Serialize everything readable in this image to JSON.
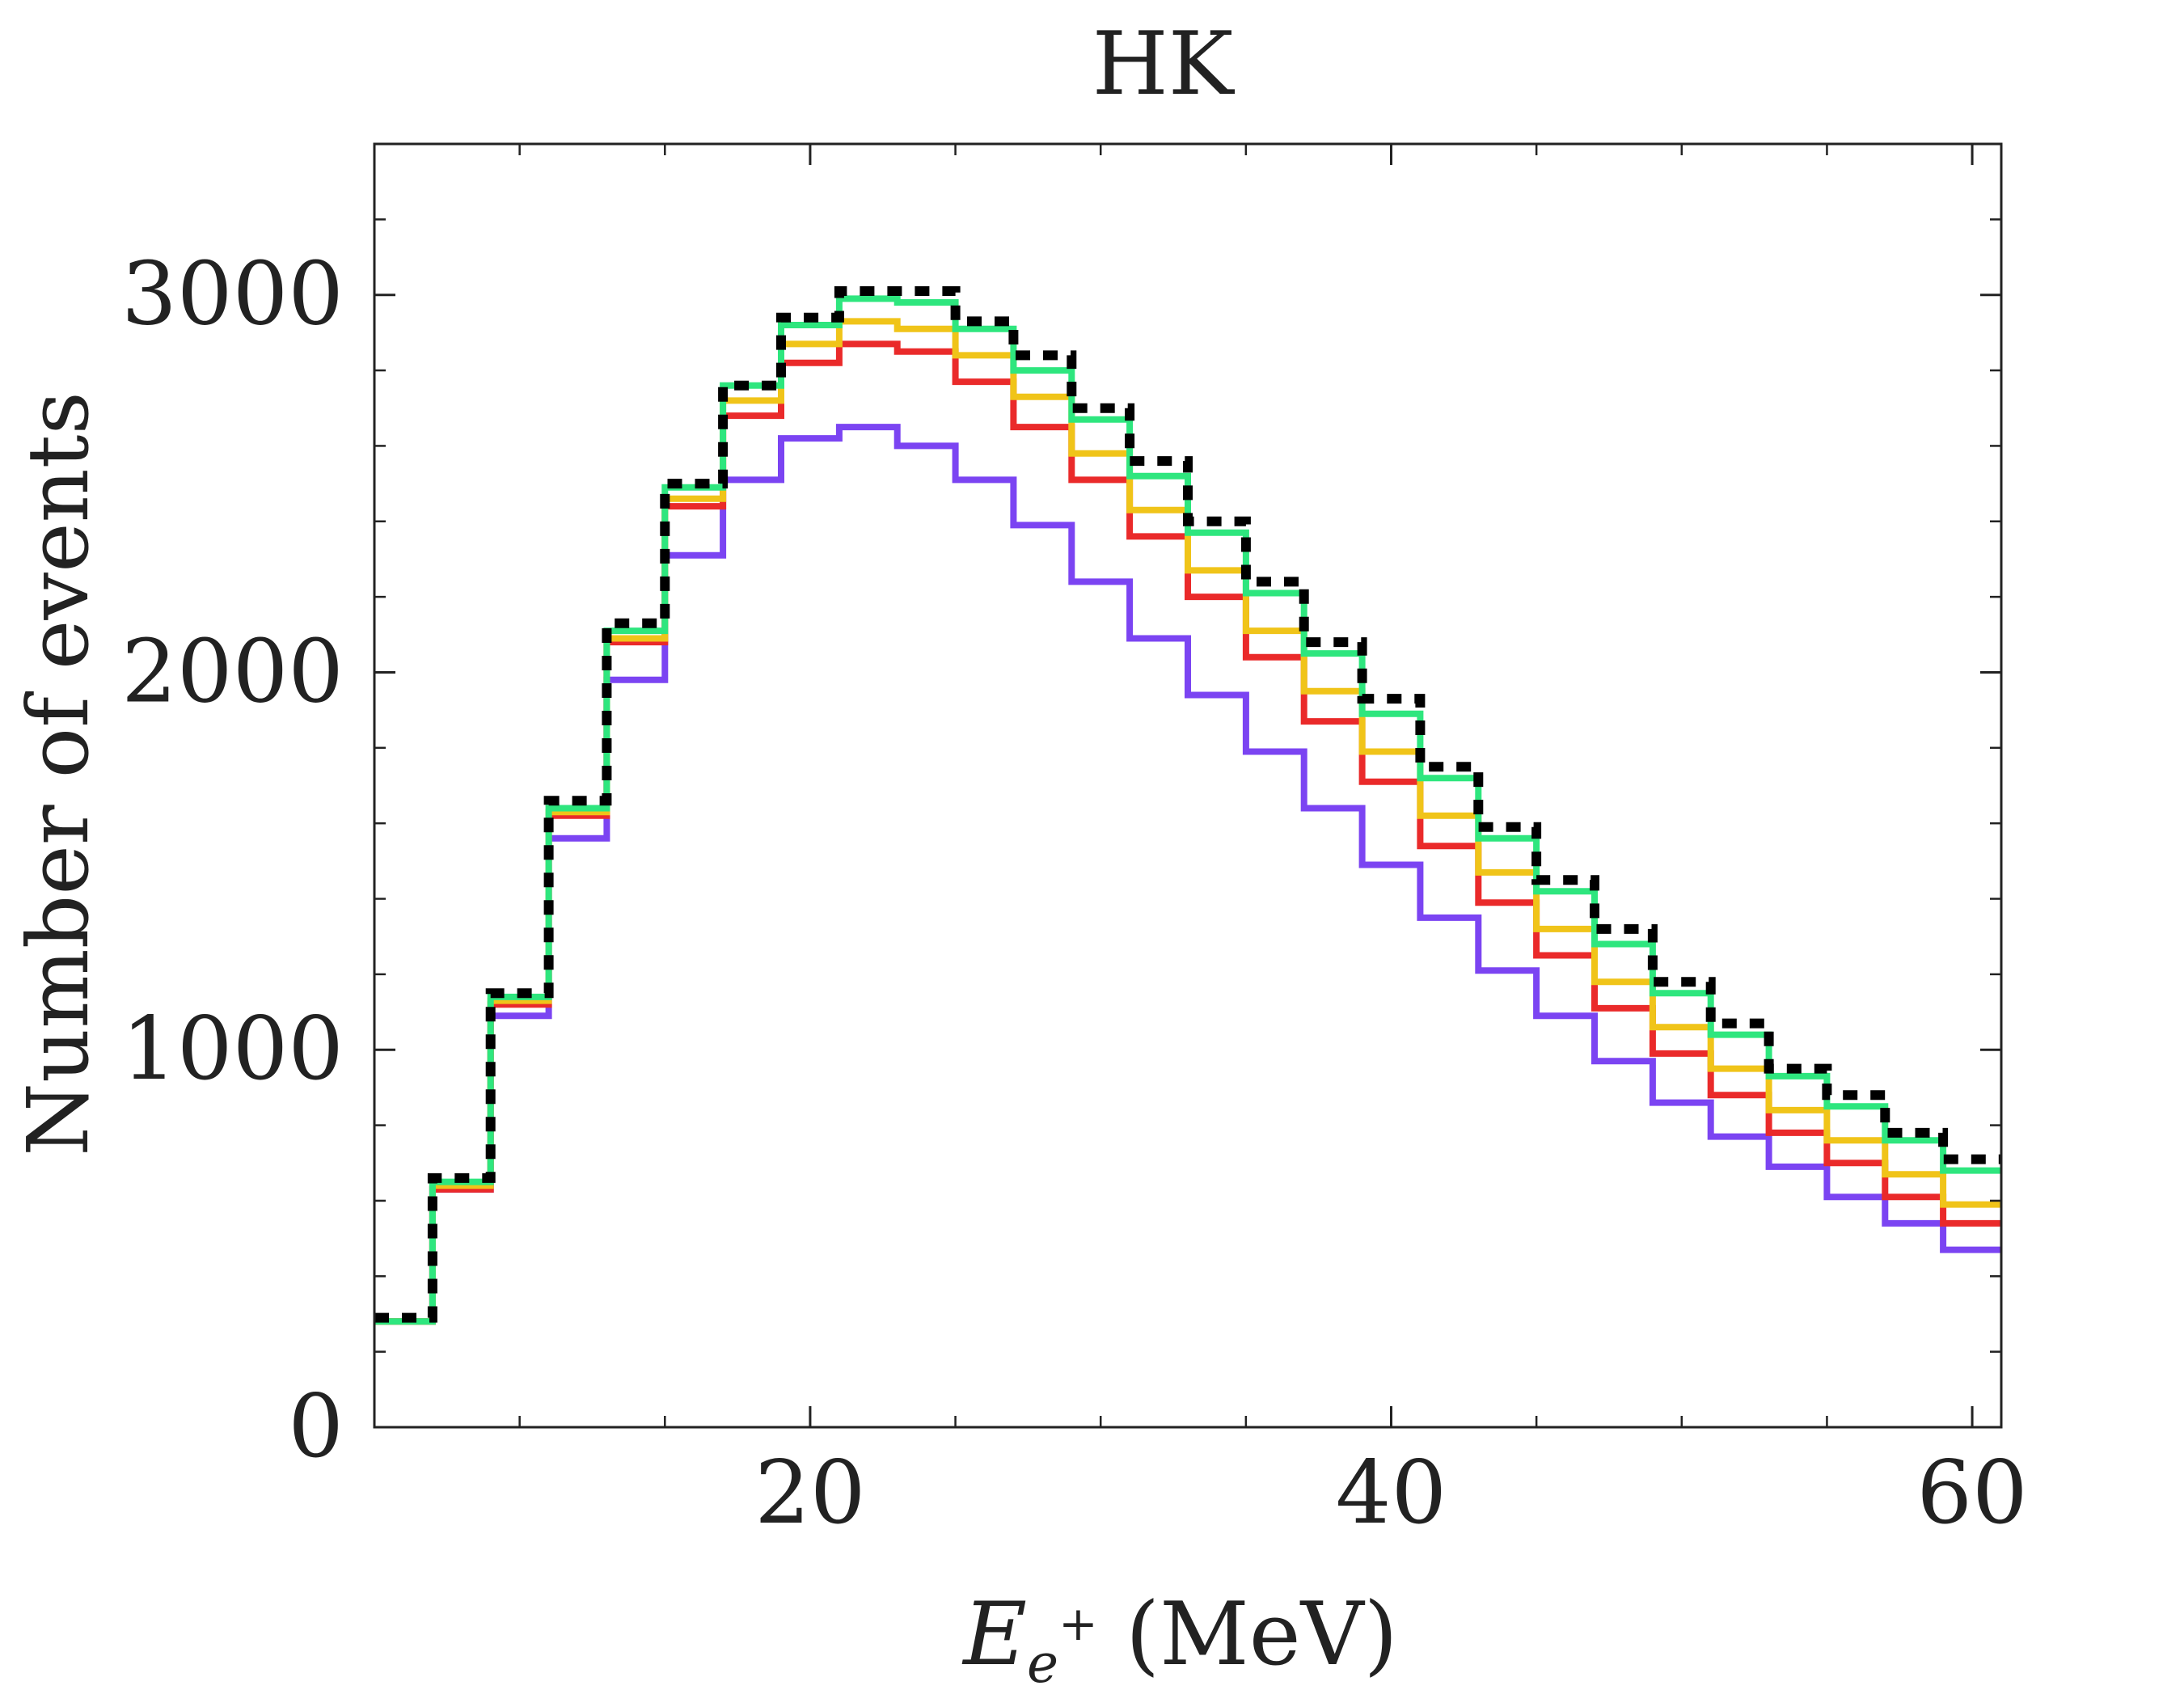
{
  "chart_data": {
    "type": "line",
    "step": true,
    "title": "HK",
    "xlabel": {
      "symbol": "E",
      "subscript": "e",
      "superscript": "+",
      "unit": " (MeV)"
    },
    "ylabel": "Number of events",
    "xlim": [
      5,
      61
    ],
    "ylim": [
      0,
      3400
    ],
    "xticks": [
      20,
      40,
      60
    ],
    "xtick_labels": [
      "20",
      "40",
      "60"
    ],
    "yticks": [
      0,
      1000,
      2000,
      3000
    ],
    "ytick_labels": [
      "0",
      "1000",
      "2000",
      "3000"
    ],
    "x_minor_step": 5,
    "y_minor_step": 200,
    "grid": false,
    "legend": "none",
    "bin_edges": [
      5,
      7,
      9,
      11,
      13,
      15,
      17,
      19,
      21,
      23,
      25,
      27,
      29,
      31,
      33,
      35,
      37,
      39,
      41,
      43,
      45,
      47,
      49,
      51,
      53,
      55,
      57,
      59,
      61
    ],
    "series": [
      {
        "name": "black-dotted",
        "color": "#000000",
        "dash": true,
        "values": [
          290,
          660,
          1150,
          1660,
          2130,
          2500,
          2760,
          2940,
          3010,
          3010,
          2930,
          2840,
          2700,
          2560,
          2400,
          2240,
          2080,
          1930,
          1750,
          1590,
          1450,
          1320,
          1180,
          1070,
          950,
          880,
          780,
          710
        ]
      },
      {
        "name": "green",
        "color": "#2ee67e",
        "dash": false,
        "values": [
          280,
          650,
          1140,
          1640,
          2110,
          2490,
          2760,
          2920,
          2990,
          2980,
          2910,
          2800,
          2670,
          2520,
          2370,
          2210,
          2050,
          1890,
          1720,
          1560,
          1420,
          1280,
          1150,
          1040,
          930,
          850,
          760,
          680
        ]
      },
      {
        "name": "yellow",
        "color": "#f0c419",
        "dash": false,
        "values": [
          280,
          640,
          1130,
          1630,
          2090,
          2460,
          2720,
          2870,
          2930,
          2910,
          2840,
          2730,
          2580,
          2430,
          2270,
          2110,
          1950,
          1790,
          1620,
          1470,
          1320,
          1180,
          1060,
          950,
          840,
          760,
          670,
          590
        ]
      },
      {
        "name": "red",
        "color": "#ea2a2a",
        "dash": false,
        "values": [
          280,
          630,
          1120,
          1620,
          2080,
          2440,
          2680,
          2820,
          2870,
          2850,
          2770,
          2650,
          2510,
          2360,
          2200,
          2040,
          1870,
          1710,
          1540,
          1390,
          1250,
          1110,
          990,
          880,
          780,
          700,
          610,
          540
        ]
      },
      {
        "name": "purple",
        "color": "#7b44f2",
        "dash": false,
        "values": [
          280,
          630,
          1090,
          1560,
          1980,
          2310,
          2510,
          2620,
          2650,
          2600,
          2510,
          2390,
          2240,
          2090,
          1940,
          1790,
          1640,
          1490,
          1350,
          1210,
          1090,
          970,
          860,
          770,
          690,
          610,
          540,
          470
        ]
      }
    ]
  }
}
